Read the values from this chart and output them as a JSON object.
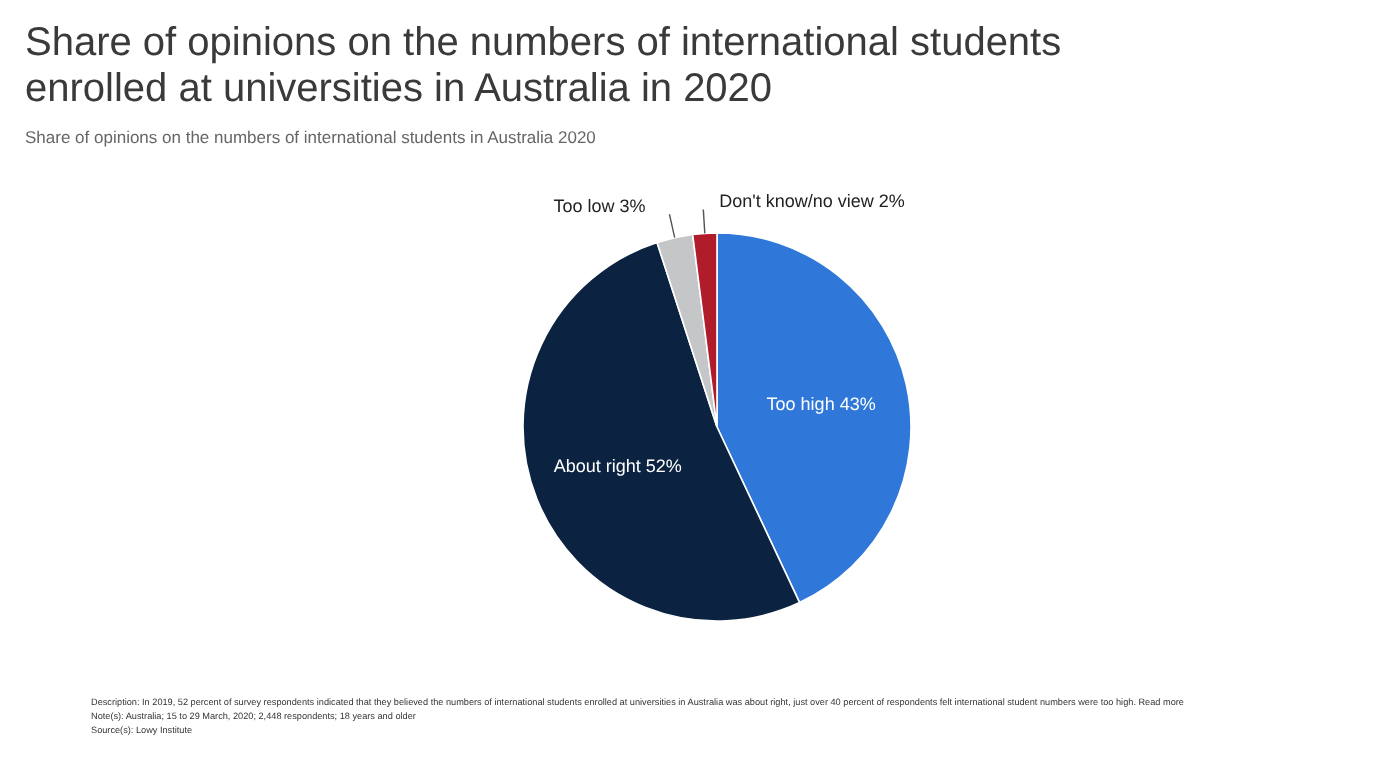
{
  "chart_data": {
    "type": "pie",
    "title": "Share of opinions on the numbers of international students enrolled at universities in Australia in 2020",
    "subtitle": "Share of opinions on the numbers of international students in Australia 2020",
    "categories": [
      "Too high",
      "About right",
      "Too low",
      "Don't know/no view"
    ],
    "values": [
      43,
      52,
      3,
      2
    ],
    "value_labels": [
      "43%",
      "52%",
      "3%",
      "2%"
    ],
    "colors": [
      "#2f77d8",
      "#0b2340",
      "#c4c6c8",
      "#b01c2a"
    ],
    "annotations": [
      "Description: In 2019, 52 percent of survey respondents indicated that they believed the numbers of international students enrolled at universities in Australia was about right, just over 40 percent of respondents felt international student numbers were too high. Read more",
      "Note(s): Australia; 15 to 29 March, 2020; 2,448 respondents; 18 years and older",
      "Source(s): Lowy Institute"
    ]
  }
}
